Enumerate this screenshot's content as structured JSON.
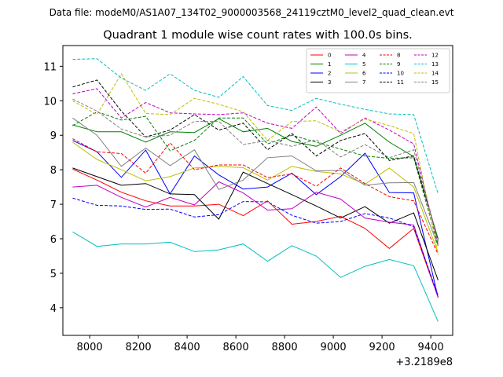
{
  "file_header": "Data file: modeM0/AS1A07_134T02_9000003568_24119cztM0_level2_quad_clean.evt",
  "chart_data": {
    "type": "line",
    "title": "Quadrant 1 module wise count rates with 100.0s bins.",
    "xlabel": "",
    "ylabel": "",
    "x_offset_label": "+3.2189e8",
    "xlim": [
      7890,
      9490
    ],
    "ylim": [
      3.2,
      11.6
    ],
    "xticks": [
      8000,
      8200,
      8400,
      8600,
      8800,
      9000,
      9200,
      9400
    ],
    "xtick_labels": [
      "8000",
      "8200",
      "8400",
      "8600",
      "8800",
      "9000",
      "9200",
      "9400"
    ],
    "yticks": [
      4,
      5,
      6,
      7,
      8,
      9,
      10,
      11
    ],
    "ytick_labels": [
      "4",
      "5",
      "6",
      "7",
      "8",
      "9",
      "10",
      "11"
    ],
    "grid": false,
    "legend_position": "upper-right",
    "x": [
      7930,
      8030,
      8130,
      8230,
      8330,
      8430,
      8530,
      8630,
      8730,
      8830,
      8930,
      9030,
      9130,
      9230,
      9330,
      9430
    ],
    "series": [
      {
        "name": "0",
        "color": "#ff0000",
        "dash": false,
        "values": [
          8.02,
          7.7,
          7.35,
          7.1,
          6.95,
          6.95,
          7.0,
          6.67,
          7.1,
          6.42,
          6.5,
          6.65,
          6.3,
          5.72,
          6.3,
          4.3
        ]
      },
      {
        "name": "1",
        "color": "#008000",
        "dash": false,
        "values": [
          9.3,
          9.1,
          9.1,
          8.8,
          9.1,
          9.08,
          9.48,
          9.1,
          9.2,
          8.82,
          8.68,
          9.0,
          9.35,
          8.8,
          8.38,
          6.0
        ]
      },
      {
        "name": "2",
        "color": "#0000ff",
        "dash": false,
        "values": [
          8.85,
          8.52,
          7.78,
          8.57,
          7.3,
          8.4,
          7.85,
          7.44,
          7.5,
          7.9,
          7.28,
          7.8,
          8.48,
          7.34,
          7.33,
          4.3
        ]
      },
      {
        "name": "3",
        "color": "#000000",
        "dash": false,
        "values": [
          8.05,
          7.8,
          7.55,
          7.6,
          7.3,
          7.28,
          6.57,
          7.93,
          7.6,
          7.28,
          6.95,
          6.6,
          6.93,
          6.45,
          6.75,
          4.8
        ]
      },
      {
        "name": "4",
        "color": "#bf00bf",
        "dash": false,
        "values": [
          7.5,
          7.55,
          7.2,
          6.92,
          7.2,
          6.98,
          7.65,
          7.33,
          6.83,
          6.87,
          7.35,
          7.15,
          6.6,
          6.48,
          6.4,
          4.3
        ]
      },
      {
        "name": "5",
        "color": "#00bfbf",
        "dash": false,
        "values": [
          6.2,
          5.78,
          5.85,
          5.85,
          5.9,
          5.63,
          5.68,
          5.85,
          5.35,
          5.8,
          5.5,
          4.88,
          5.2,
          5.4,
          5.22,
          3.6
        ]
      },
      {
        "name": "6",
        "color": "#bfbf00",
        "dash": false,
        "values": [
          8.8,
          8.3,
          8.0,
          7.68,
          7.8,
          8.05,
          8.1,
          8.06,
          7.7,
          8.1,
          7.95,
          7.88,
          7.58,
          8.05,
          7.5,
          5.6
        ]
      },
      {
        "name": "7",
        "color": "#808080",
        "dash": false,
        "values": [
          9.5,
          9.0,
          8.1,
          8.63,
          8.12,
          8.58,
          7.43,
          7.7,
          8.35,
          8.4,
          7.97,
          7.98,
          7.55,
          7.62,
          7.63,
          5.8
        ]
      },
      {
        "name": "8",
        "color": "#ff0000",
        "dash": true,
        "values": [
          8.9,
          8.52,
          8.47,
          7.9,
          8.78,
          8.0,
          8.14,
          8.14,
          7.77,
          7.88,
          7.52,
          8.05,
          7.6,
          7.22,
          7.1,
          5.55
        ]
      },
      {
        "name": "9",
        "color": "#008000",
        "dash": true,
        "values": [
          9.28,
          9.68,
          9.44,
          9.55,
          8.55,
          8.85,
          9.5,
          9.5,
          8.75,
          9.0,
          8.8,
          8.6,
          8.4,
          8.33,
          8.35,
          5.8
        ]
      },
      {
        "name": "10",
        "color": "#0000ff",
        "dash": true,
        "values": [
          7.18,
          6.97,
          6.95,
          6.85,
          6.86,
          6.63,
          6.7,
          7.08,
          7.07,
          6.68,
          6.45,
          6.5,
          6.73,
          6.6,
          6.35,
          4.35
        ]
      },
      {
        "name": "11",
        "color": "#000000",
        "dash": true,
        "values": [
          10.4,
          10.6,
          9.7,
          8.95,
          9.15,
          9.6,
          9.15,
          9.35,
          8.58,
          9.05,
          8.4,
          8.85,
          9.05,
          8.27,
          8.4,
          5.95
        ]
      },
      {
        "name": "12",
        "color": "#bf00bf",
        "dash": true,
        "values": [
          10.2,
          10.35,
          9.5,
          9.95,
          9.65,
          9.62,
          9.6,
          9.65,
          9.35,
          9.2,
          9.82,
          9.05,
          9.5,
          9.15,
          8.75,
          5.85
        ]
      },
      {
        "name": "13",
        "color": "#00bfbf",
        "dash": true,
        "values": [
          11.2,
          11.22,
          10.66,
          10.3,
          10.78,
          10.3,
          10.1,
          10.7,
          9.86,
          9.72,
          10.07,
          9.9,
          9.75,
          9.62,
          9.6,
          7.3
        ]
      },
      {
        "name": "14",
        "color": "#bfbf00",
        "dash": true,
        "values": [
          10.0,
          9.6,
          10.78,
          9.63,
          9.6,
          10.07,
          9.9,
          9.68,
          8.85,
          9.4,
          9.42,
          9.1,
          9.47,
          9.28,
          9.05,
          5.55
        ]
      },
      {
        "name": "15",
        "color": "#808080",
        "dash": true,
        "values": [
          10.05,
          9.7,
          9.18,
          8.95,
          9.0,
          9.4,
          9.4,
          8.73,
          8.85,
          8.68,
          8.87,
          8.37,
          8.73,
          8.35,
          8.58,
          5.9
        ]
      }
    ]
  }
}
